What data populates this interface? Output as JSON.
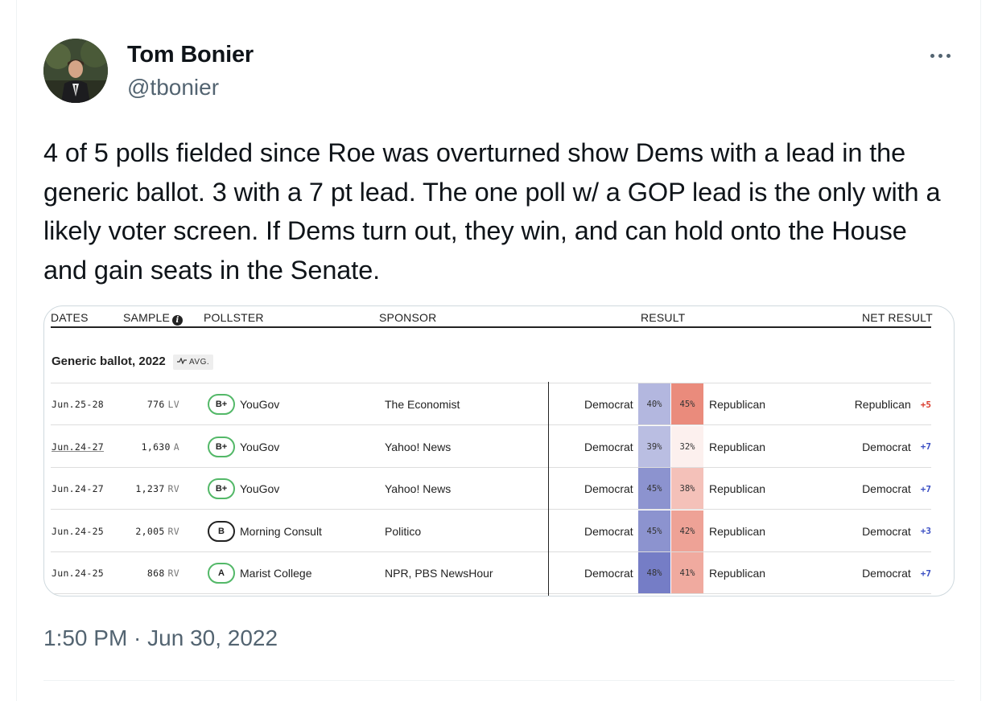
{
  "author": {
    "display_name": "Tom Bonier",
    "handle": "@tbonier"
  },
  "tweet": {
    "text": "4 of 5 polls fielded since Roe was overturned show Dems with a lead in the generic ballot. 3 with a 7 pt lead. The one poll w/ a GOP lead is the only with a likely voter screen. If Dems turn out, they win, and can hold onto the House and gain seats in the Senate.",
    "timestamp": "1:50 PM · Jun 30, 2022"
  },
  "poll_table": {
    "headers": {
      "dates": "DATES",
      "sample": "SAMPLE",
      "pollster": "POLLSTER",
      "sponsor": "SPONSOR",
      "result": "RESULT",
      "net_result": "NET RESULT"
    },
    "section_title": "Generic ballot, 2022",
    "avg_label": "AVG.",
    "rows": [
      {
        "date": "Jun.25-28",
        "sample": "776",
        "sample_type": "LV",
        "grade": "B+",
        "pollster": "YouGov",
        "sponsor": "The Economist",
        "dem_label": "Democrat",
        "dem_pct": "40%",
        "dem_value": 40,
        "rep_pct": "45%",
        "rep_value": 45,
        "rep_label": "Republican",
        "net_party": "Republican",
        "net_value": "+5",
        "net_side": "R"
      },
      {
        "date": "Jun.24-27",
        "sample": "1,630",
        "sample_type": "A",
        "grade": "B+",
        "pollster": "YouGov",
        "sponsor": "Yahoo! News",
        "dem_label": "Democrat",
        "dem_pct": "39%",
        "dem_value": 39,
        "rep_pct": "32%",
        "rep_value": 32,
        "rep_label": "Republican",
        "net_party": "Democrat",
        "net_value": "+7",
        "net_side": "D"
      },
      {
        "date": "Jun.24-27",
        "sample": "1,237",
        "sample_type": "RV",
        "grade": "B+",
        "pollster": "YouGov",
        "sponsor": "Yahoo! News",
        "dem_label": "Democrat",
        "dem_pct": "45%",
        "dem_value": 45,
        "rep_pct": "38%",
        "rep_value": 38,
        "rep_label": "Republican",
        "net_party": "Democrat",
        "net_value": "+7",
        "net_side": "D"
      },
      {
        "date": "Jun.24-25",
        "sample": "2,005",
        "sample_type": "RV",
        "grade": "B",
        "pollster": "Morning Consult",
        "sponsor": "Politico",
        "dem_label": "Democrat",
        "dem_pct": "45%",
        "dem_value": 45,
        "rep_pct": "42%",
        "rep_value": 42,
        "rep_label": "Republican",
        "net_party": "Democrat",
        "net_value": "+3",
        "net_side": "D"
      },
      {
        "date": "Jun.24-25",
        "sample": "868",
        "sample_type": "RV",
        "grade": "A",
        "pollster": "Marist College",
        "sponsor": "NPR, PBS NewsHour",
        "dem_label": "Democrat",
        "dem_pct": "48%",
        "dem_value": 48,
        "rep_pct": "41%",
        "rep_value": 41,
        "rep_label": "Republican",
        "net_party": "Democrat",
        "net_value": "+7",
        "net_side": "D"
      }
    ]
  },
  "colors": {
    "dem_base": "#4b55b4",
    "rep_base": "#e0533d",
    "grade_good": "#53b868"
  }
}
